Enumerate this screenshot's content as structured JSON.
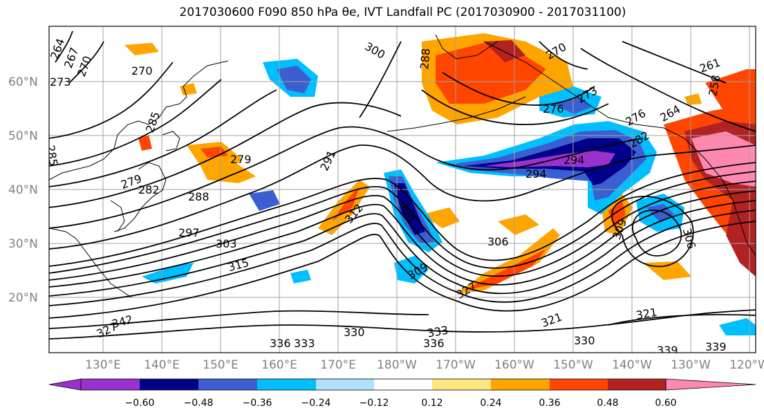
{
  "title": "2017030600 F090 850 hPa θe, IVT Landfall PC (2017030900 - 2017031100)",
  "map": {
    "lon_labels": [
      "130°E",
      "140°E",
      "150°E",
      "160°E",
      "170°E",
      "180°W",
      "170°W",
      "160°W",
      "150°W",
      "140°W",
      "130°W",
      "120°W"
    ],
    "lat_labels": [
      "60°N",
      "50°N",
      "40°N",
      "30°N",
      "20°N"
    ],
    "contour_labels": [
      "264",
      "267",
      "270",
      "273",
      "270",
      "276",
      "279",
      "282",
      "285",
      "288",
      "291",
      "294",
      "297",
      "300",
      "303",
      "306",
      "309",
      "312",
      "315",
      "321",
      "327",
      "330",
      "333",
      "336",
      "339",
      "342",
      "258",
      "261",
      "264",
      "270",
      "273",
      "276",
      "279",
      "282",
      "285",
      "288",
      "294",
      "300",
      "306",
      "309",
      "321",
      "327",
      "330",
      "333",
      "336",
      "339"
    ]
  },
  "colorbar": {
    "ticks": [
      "−0.60",
      "−0.48",
      "−0.36",
      "−0.24",
      "−0.12",
      "0.12",
      "0.24",
      "0.36",
      "0.48",
      "0.60"
    ],
    "colors": [
      "#9932cc",
      "#00008b",
      "#3b5fd0",
      "#00bfff",
      "#b0e2ff",
      "#ffffff",
      "#ffe680",
      "#ffa500",
      "#ff4500",
      "#b22222",
      "#ff88b0"
    ]
  }
}
